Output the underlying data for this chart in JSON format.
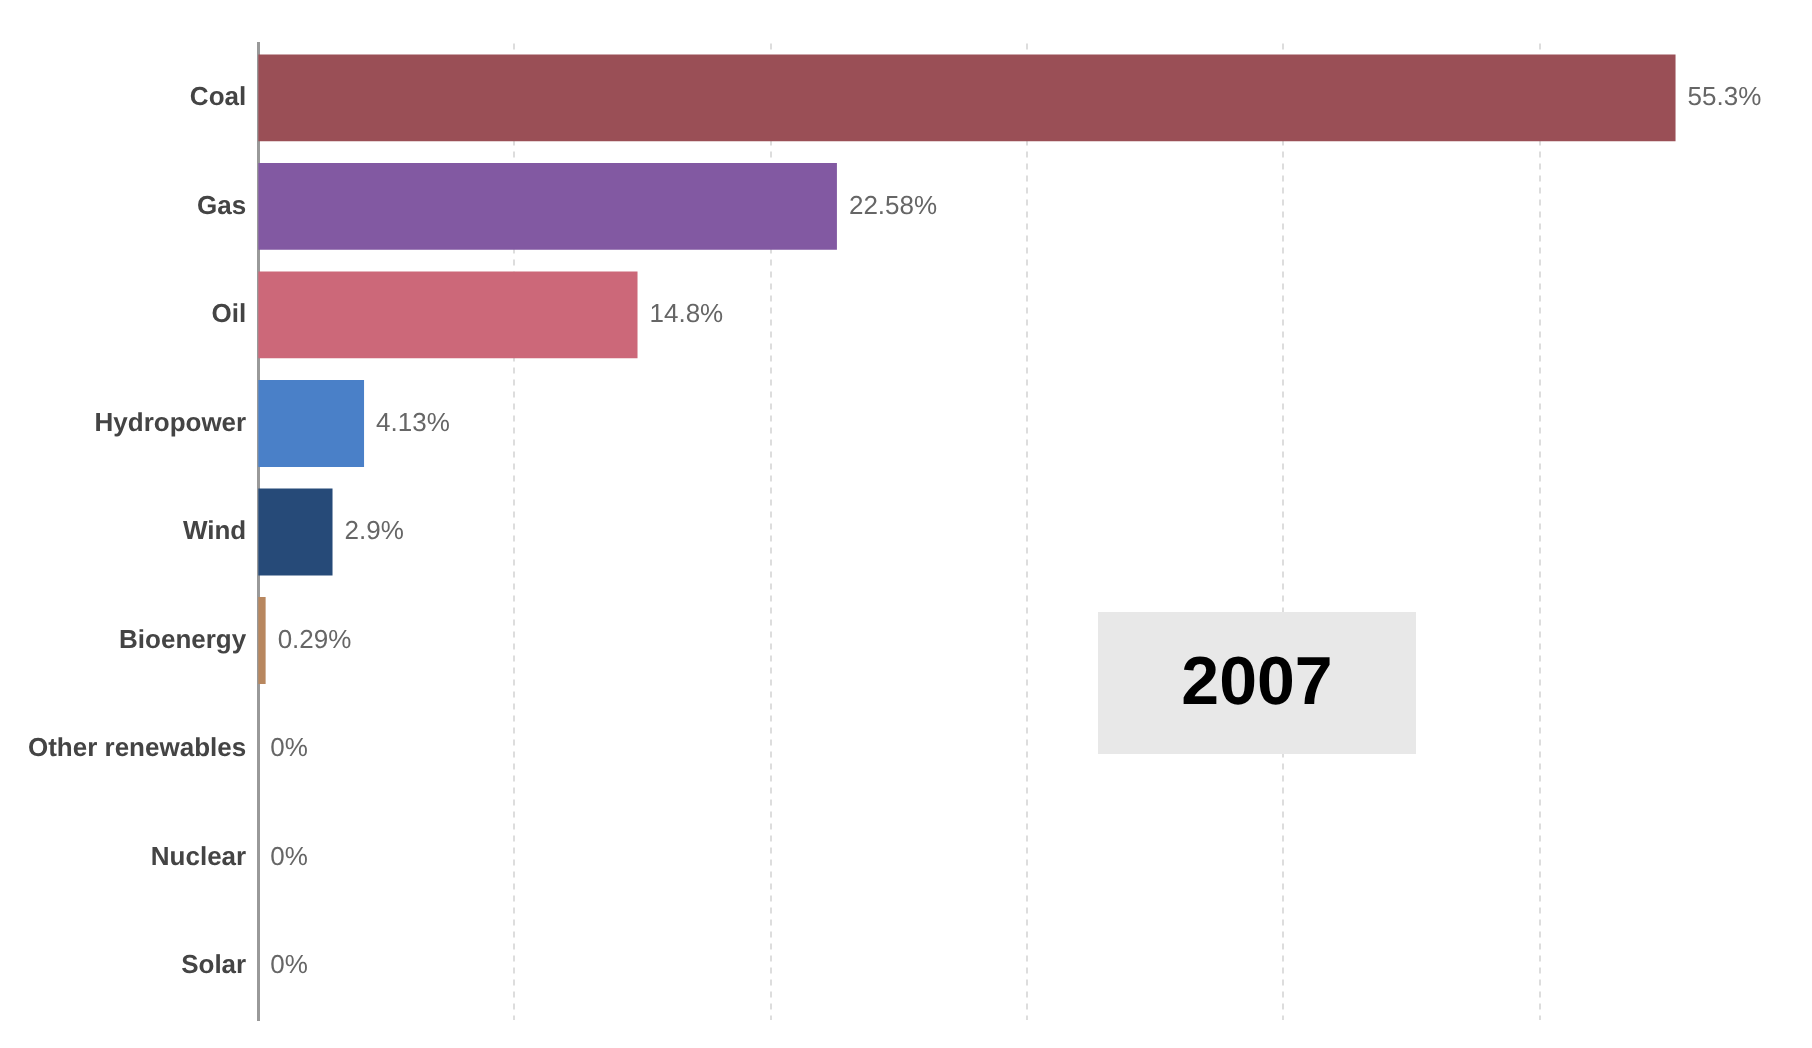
{
  "chart_data": {
    "type": "bar",
    "orientation": "horizontal",
    "categories": [
      "Coal",
      "Gas",
      "Oil",
      "Hydropower",
      "Wind",
      "Bioenergy",
      "Other renewables",
      "Nuclear",
      "Solar"
    ],
    "values": [
      55.3,
      22.58,
      14.8,
      4.13,
      2.9,
      0.29,
      0,
      0,
      0
    ],
    "colors": [
      "#9a4f56",
      "#8259a2",
      "#cc6879",
      "#4a80c8",
      "#264a78",
      "#b8875f",
      "#999999",
      "#999999",
      "#999999"
    ],
    "value_labels": [
      "55.3%",
      "22.58%",
      "14.8%",
      "4.13%",
      "2.9%",
      "0.29%",
      "0%",
      "0%",
      "0%"
    ],
    "xticks": [
      {
        "value": 10,
        "label": null
      },
      {
        "value": 20,
        "label": null
      },
      {
        "value": 30,
        "label": null
      },
      {
        "value": 40,
        "label": null
      },
      {
        "value": 50,
        "label": null
      }
    ],
    "grid": "x",
    "tick_labels": "y",
    "legend": false,
    "annotations": [
      "2007"
    ]
  }
}
